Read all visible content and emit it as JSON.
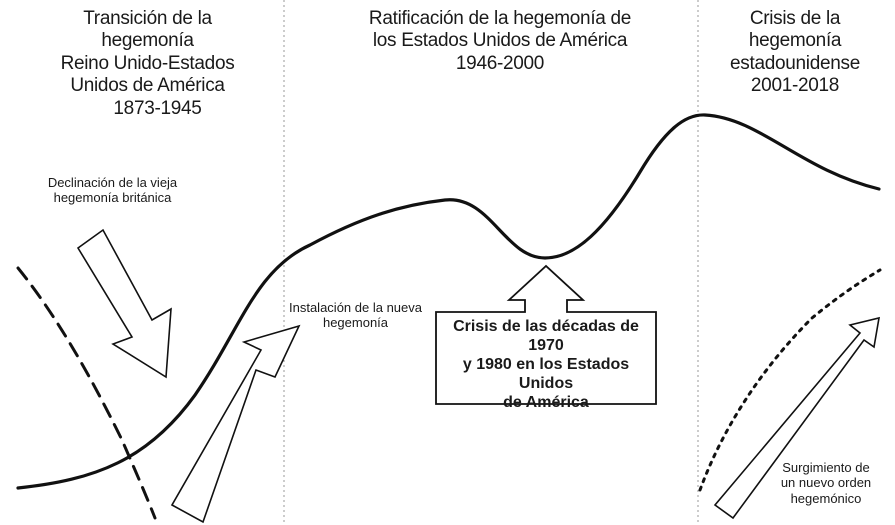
{
  "periods": [
    {
      "lines": [
        "Transición de la hegemonía",
        "Reino Unido-Estados",
        "Unidos de América",
        "1873-1945"
      ]
    },
    {
      "lines": [
        "Ratificación de la hegemonía de",
        "los Estados Unidos de América",
        "1946-2000"
      ]
    },
    {
      "lines": [
        "Crisis de la hegemonía",
        "estadounidense",
        "2001-2018"
      ]
    }
  ],
  "annotations": {
    "declining": [
      "Declinación de la vieja",
      "hegemonía británica"
    ],
    "installation": [
      "Instalación de la nueva",
      "hegemonía"
    ],
    "crisis_70_80": [
      "Crisis de las décadas de 1970",
      "y 1980 en los Estados Unidos",
      "de América"
    ],
    "emergence": [
      "Surgimiento de",
      "un nuevo orden",
      "hegemónico"
    ]
  },
  "colors": {
    "line": "#111111",
    "divider": "#999999",
    "background": "#ffffff"
  },
  "icons": [
    "down-right-arrow-icon",
    "up-right-arrow-icon",
    "up-arrow-icon"
  ]
}
